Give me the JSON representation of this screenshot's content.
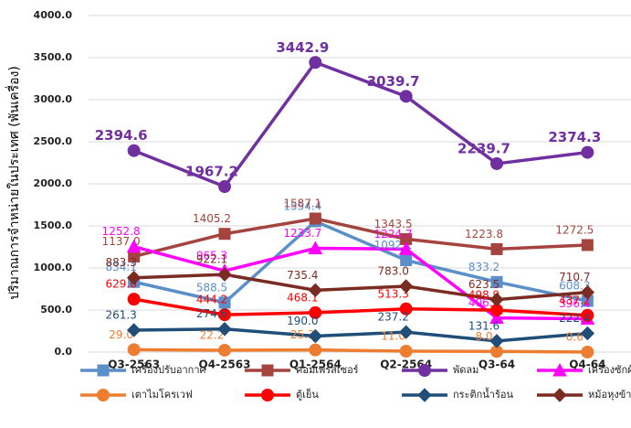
{
  "chart_data": {
    "type": "line",
    "y_label": "ปริมาณการจำหน่ายในประเทศ (พันเครื่อง)",
    "categories": [
      "Q3-2563",
      "Q4-2563",
      "Q1-2564",
      "Q2-2564",
      "Q3-64",
      "Q4-64"
    ],
    "ylim": [
      0,
      4000
    ],
    "yticks": [
      {
        "value": 0,
        "label": "0.0"
      },
      {
        "value": 500,
        "label": "500.0"
      },
      {
        "value": 1000,
        "label": "1000.0"
      },
      {
        "value": 1500,
        "label": "1500.0"
      },
      {
        "value": 2000,
        "label": "2000.0"
      },
      {
        "value": 2500,
        "label": "2500.0"
      },
      {
        "value": 3000,
        "label": "3000.0"
      },
      {
        "value": 3500,
        "label": "3500.0"
      },
      {
        "value": 4000,
        "label": "4000.0"
      }
    ],
    "grid": true,
    "legend": "bottom",
    "series": [
      {
        "name": "เครื่องปรับอากาศ",
        "color": "#5b8fc9",
        "marker": "square",
        "values": [
          834.1,
          588.5,
          1554.4,
          1092.1,
          833.2,
          608.3
        ],
        "value_labels": [
          "834.1",
          "588.5",
          "1554.4",
          "1092.1",
          "833.2",
          "608.3"
        ]
      },
      {
        "name": "คอมเพรสเซอร์",
        "color": "#a5443f",
        "marker": "square",
        "values": [
          1137,
          1405.2,
          1587.1,
          1343.5,
          1223.8,
          1272.5
        ],
        "value_labels": [
          "1137.0",
          "1405.2",
          "1587.1",
          "1343.5",
          "1223.8",
          "1272.5"
        ]
      },
      {
        "name": "พัดลม",
        "color": "#7030a0",
        "marker": "circle",
        "values": [
          2394.6,
          1967.2,
          3442.9,
          3039.7,
          2239.7,
          2374.3
        ],
        "value_labels": [
          "2394.6",
          "1967.2",
          "3442.9",
          "3039.7",
          "2239.7",
          "2374.3"
        ]
      },
      {
        "name": "เครื่องซักผ้า",
        "color": "#ff00ff",
        "marker": "triangle",
        "values": [
          1252.8,
          965.3,
          1233.7,
          1224.7,
          406.2,
          396.4
        ],
        "value_labels": [
          "1252.8",
          "965.3",
          "1233.7",
          "1224.7",
          "406.2",
          "396.4"
        ]
      },
      {
        "name": "เตาไมโครเวฟ",
        "color": "#ed7d31",
        "marker": "circle",
        "values": [
          29,
          22.2,
          25.3,
          11,
          8,
          0.6
        ],
        "value_labels": [
          "29.0",
          "22.2",
          "25.3",
          "11.0",
          "8.0",
          "0.6"
        ]
      },
      {
        "name": "ตู้เย็น",
        "color": "#ff0000",
        "marker": "circle",
        "values": [
          629,
          444.2,
          468.1,
          513.3,
          498.9,
          437.2
        ],
        "value_labels": [
          "629.0",
          "444.2",
          "468.1",
          "513.3",
          "498.9",
          "437.2"
        ]
      },
      {
        "name": "กระติกน้ำร้อน",
        "color": "#1f4e79",
        "marker": "diamond",
        "values": [
          261.3,
          274.6,
          190,
          237.2,
          131.6,
          222.4
        ],
        "value_labels": [
          "261.3",
          "274.6",
          "190.0",
          "237.2",
          "131.6",
          "222.4"
        ]
      },
      {
        "name": "หม้อหุงข้าว",
        "color": "#7b2c22",
        "marker": "diamond",
        "values": [
          883.3,
          922.1,
          735.4,
          783,
          623.5,
          710.7
        ],
        "value_labels": [
          "883.3",
          "922.1",
          "735.4",
          "783.0",
          "623.5",
          "710.7"
        ]
      }
    ]
  }
}
